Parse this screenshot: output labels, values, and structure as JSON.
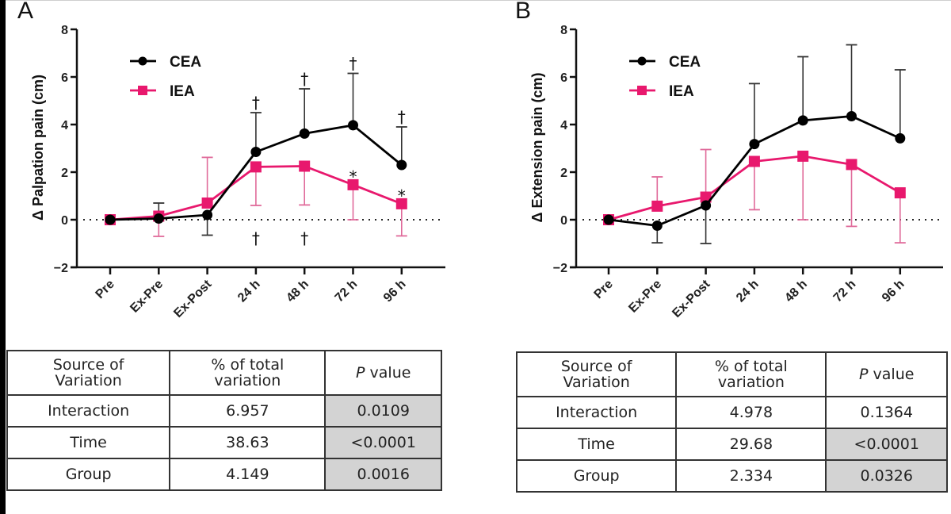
{
  "chart_data": [
    {
      "type": "line",
      "panel": "A",
      "ylabel": "Δ Palpation pain (cm)",
      "xlabel": "",
      "categories": [
        "Pre",
        "Ex-Pre",
        "Ex-Post",
        "24 h",
        "48 h",
        "72 h",
        "96 h"
      ],
      "ylim": [
        -2,
        8
      ],
      "yticks": [
        -2,
        0,
        2,
        4,
        6,
        8
      ],
      "ytick_labels": [
        "−2",
        "0",
        "2",
        "4",
        "6",
        "8"
      ],
      "reference_line": 0,
      "legend": "top-left",
      "series": [
        {
          "name": "CEA",
          "color": "#000000",
          "marker": "circle",
          "values": [
            0,
            0.05,
            0.2,
            2.85,
            3.62,
            3.97,
            2.3
          ],
          "error_bars": [
            null,
            0.7,
            -0.65,
            4.5,
            5.5,
            6.15,
            3.9
          ],
          "error_direction": [
            "none",
            "up",
            "down",
            "up",
            "up",
            "up",
            "up"
          ]
        },
        {
          "name": "IEA",
          "color": "#e8186d",
          "marker": "square",
          "values": [
            0,
            0.15,
            0.7,
            2.22,
            2.25,
            1.47,
            0.67
          ],
          "error_bars": [
            null,
            -0.7,
            2.62,
            0.6,
            0.62,
            0.0,
            -0.68
          ],
          "error_direction": [
            "none",
            "down",
            "up",
            "down",
            "down",
            "down",
            "down"
          ]
        }
      ],
      "annotations": [
        {
          "symbol": "†",
          "category": "24 h",
          "y": 4.95
        },
        {
          "symbol": "†",
          "category": "48 h",
          "y": 5.95
        },
        {
          "symbol": "†",
          "category": "72 h",
          "y": 6.6
        },
        {
          "symbol": "†",
          "category": "96 h",
          "y": 4.35
        },
        {
          "symbol": "*",
          "category": "72 h",
          "y": 2.1
        },
        {
          "symbol": "*",
          "category": "96 h",
          "y": 1.3
        },
        {
          "symbol": "†",
          "category": "24 h",
          "y": -0.75
        },
        {
          "symbol": "†",
          "category": "48 h",
          "y": -0.75
        }
      ]
    },
    {
      "type": "line",
      "panel": "B",
      "ylabel": "Δ Extension pain (cm)",
      "xlabel": "",
      "categories": [
        "Pre",
        "Ex-Pre",
        "Ex-Post",
        "24 h",
        "48 h",
        "72 h",
        "96 h"
      ],
      "ylim": [
        -2,
        8
      ],
      "yticks": [
        -2,
        0,
        2,
        4,
        6,
        8
      ],
      "ytick_labels": [
        "−2",
        "0",
        "2",
        "4",
        "6",
        "8"
      ],
      "reference_line": 0,
      "legend": "top-left",
      "series": [
        {
          "name": "CEA",
          "color": "#000000",
          "marker": "circle",
          "values": [
            0,
            -0.25,
            0.6,
            3.18,
            4.17,
            4.35,
            3.42
          ],
          "error_bars": [
            null,
            -0.97,
            -1.0,
            5.72,
            6.85,
            7.35,
            6.3
          ],
          "error_direction": [
            "none",
            "down",
            "down",
            "up",
            "up",
            "up",
            "up"
          ]
        },
        {
          "name": "IEA",
          "color": "#e8186d",
          "marker": "square",
          "values": [
            0,
            0.57,
            0.95,
            2.45,
            2.67,
            2.32,
            1.13
          ],
          "error_bars": [
            null,
            1.8,
            2.95,
            0.42,
            0.0,
            -0.28,
            -0.97
          ],
          "error_direction": [
            "none",
            "up",
            "up",
            "down",
            "down",
            "down",
            "down"
          ]
        }
      ],
      "annotations": []
    }
  ],
  "panels": {
    "A": {
      "letter": "A",
      "legend": [
        "CEA",
        "IEA"
      ],
      "table": {
        "headers": [
          "Source of\nVariation",
          "% of total\nvariation",
          "P value"
        ],
        "header_lines": [
          [
            "Source of",
            "Variation"
          ],
          [
            "% of total",
            "variation"
          ],
          [
            "P",
            " value"
          ]
        ],
        "rows": [
          {
            "source": "Interaction",
            "pct": "6.957",
            "p": "0.0109",
            "significant": true
          },
          {
            "source": "Time",
            "pct": "38.63",
            "p": "<0.0001",
            "significant": true
          },
          {
            "source": "Group",
            "pct": "4.149",
            "p": "0.0016",
            "significant": true
          }
        ]
      }
    },
    "B": {
      "letter": "B",
      "legend": [
        "CEA",
        "IEA"
      ],
      "table": {
        "headers": [
          "Source of\nVariation",
          "% of total\nvariation",
          "P value"
        ],
        "header_lines": [
          [
            "Source of",
            "Variation"
          ],
          [
            "% of total",
            "variation"
          ],
          [
            "P",
            " value"
          ]
        ],
        "rows": [
          {
            "source": "Interaction",
            "pct": "4.978",
            "p": "0.1364",
            "significant": false
          },
          {
            "source": "Time",
            "pct": "29.68",
            "p": "<0.0001",
            "significant": true
          },
          {
            "source": "Group",
            "pct": "2.334",
            "p": "0.0326",
            "significant": true
          }
        ]
      }
    }
  },
  "colors": {
    "cea": "#000000",
    "iea": "#e8186d",
    "iea_errorbar": "#e06a9a",
    "shaded_cell": "#d3d3d3"
  }
}
